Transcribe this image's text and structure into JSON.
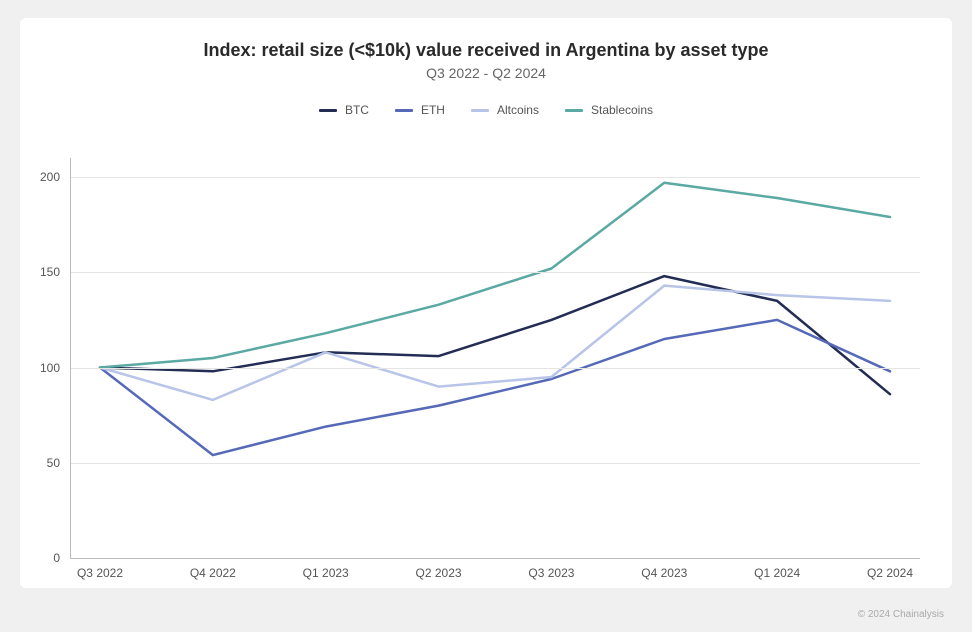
{
  "chart": {
    "type": "line",
    "title": "Index: retail size (<$10k) value received in Argentina by asset type",
    "subtitle": "Q3 2022 - Q2 2024",
    "title_fontsize": 18,
    "subtitle_fontsize": 14,
    "title_color": "#2a2a2a",
    "subtitle_color": "#666666",
    "background_color": "#ffffff",
    "page_background": "#f0f0f0",
    "grid_color": "#e5e5e5",
    "axis_color": "#bbbbbb",
    "label_color": "#555555",
    "label_fontsize": 12,
    "line_width": 2.5,
    "x_categories": [
      "Q3 2022",
      "Q4 2022",
      "Q1 2023",
      "Q2 2023",
      "Q3 2023",
      "Q4 2023",
      "Q1 2024",
      "Q2 2024"
    ],
    "ylim": [
      0,
      210
    ],
    "yticks": [
      0,
      50,
      100,
      150,
      200
    ],
    "plot_left_pad": 30,
    "plot_right_pad": 30,
    "series": [
      {
        "name": "BTC",
        "color": "#232d54",
        "values": [
          100,
          98,
          108,
          106,
          125,
          148,
          135,
          86
        ]
      },
      {
        "name": "ETH",
        "color": "#5569b8",
        "values": [
          100,
          54,
          69,
          80,
          94,
          115,
          125,
          98
        ]
      },
      {
        "name": "Altcoins",
        "color": "#b8c4e8",
        "values": [
          100,
          83,
          108,
          90,
          95,
          143,
          138,
          135
        ]
      },
      {
        "name": "Stablecoins",
        "color": "#5aa9a2",
        "values": [
          100,
          105,
          118,
          133,
          152,
          197,
          189,
          179
        ]
      }
    ],
    "legend_gap": 26,
    "attribution": "© 2024 Chainalysis"
  }
}
